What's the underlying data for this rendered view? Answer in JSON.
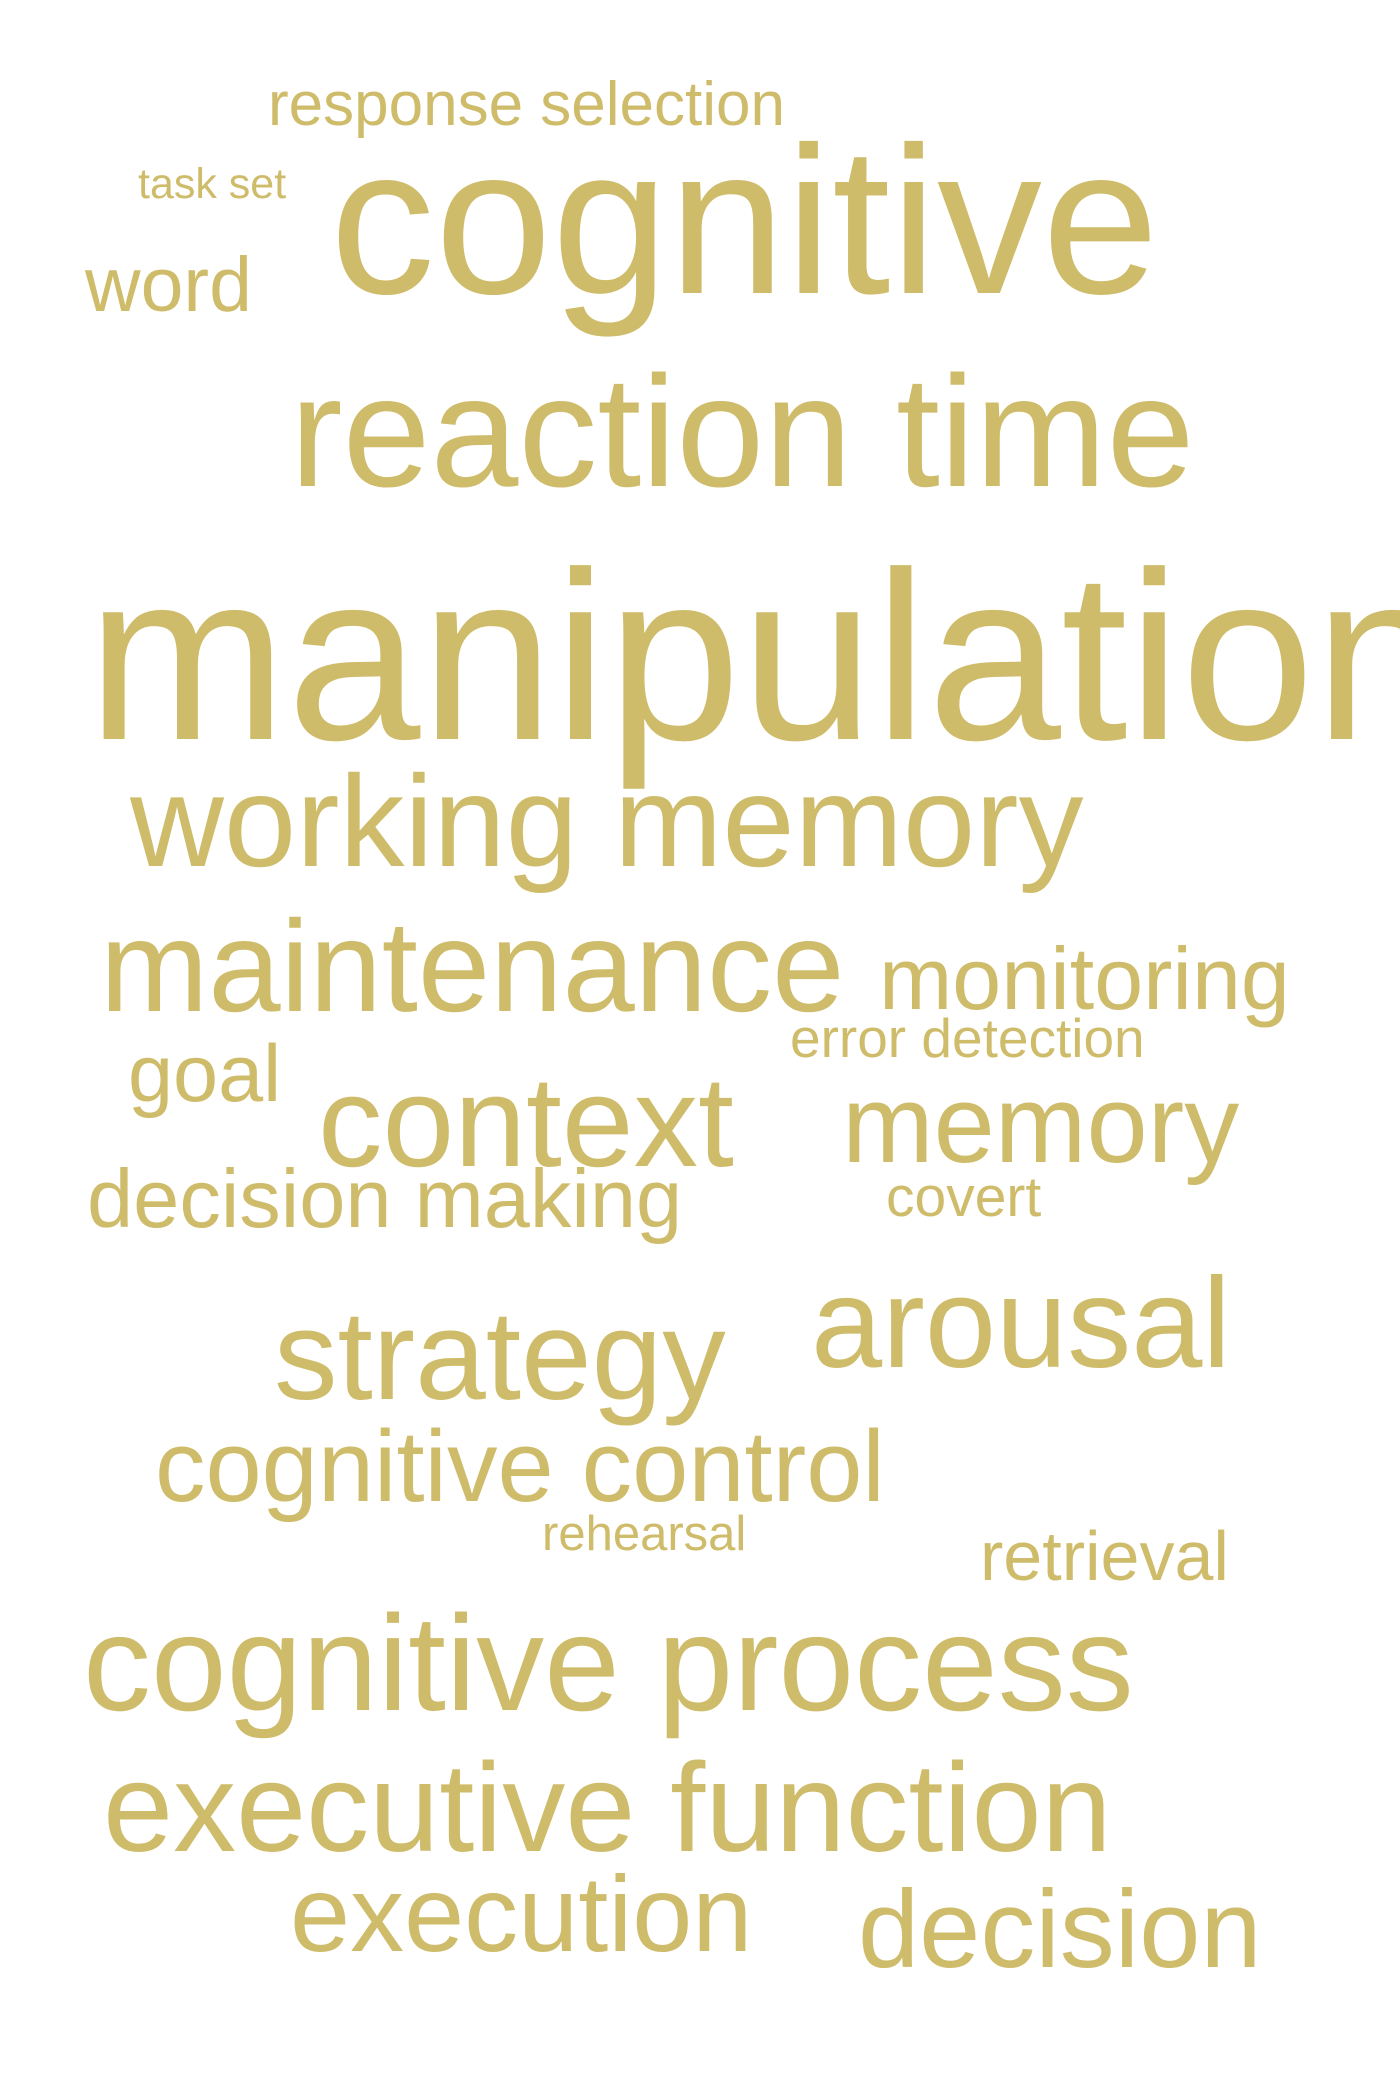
{
  "word_cloud": {
    "color": "#cfbc6b",
    "background": "#ffffff",
    "words": [
      "response selection",
      "task set",
      "cognitive",
      "word",
      "reaction time",
      "manipulation",
      "working memory",
      "maintenance",
      "monitoring",
      "error detection",
      "goal",
      "context",
      "memory",
      "decision making",
      "covert",
      "strategy",
      "arousal",
      "cognitive control",
      "rehearsal",
      "retrieval",
      "cognitive process",
      "executive function",
      "execution",
      "decision"
    ]
  }
}
